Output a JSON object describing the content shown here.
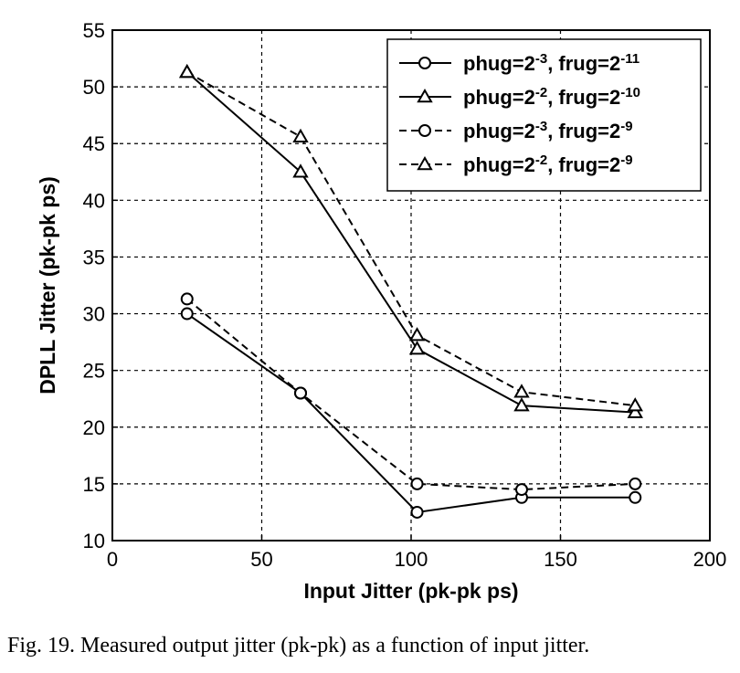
{
  "caption": "Fig. 19.   Measured output jitter (pk-pk) as a function of input jitter.",
  "chart_data": {
    "type": "line",
    "title": "",
    "xlabel": "Input Jitter (pk-pk ps)",
    "ylabel": "DPLL Jitter (pk-pk ps)",
    "xlim": [
      0,
      200
    ],
    "ylim": [
      10,
      55
    ],
    "xticks": [
      0,
      50,
      100,
      150,
      200
    ],
    "yticks": [
      10,
      15,
      20,
      25,
      30,
      35,
      40,
      45,
      50,
      55
    ],
    "grid": true,
    "grid_style": "dashed",
    "legend_position": "top-right",
    "series": [
      {
        "name_parts": [
          "phug=2",
          "-3",
          ", frug=2",
          "-11"
        ],
        "marker": "circle",
        "line": "solid",
        "x": [
          25,
          63,
          102,
          137,
          175
        ],
        "y": [
          30,
          23,
          12.5,
          13.8,
          13.8
        ]
      },
      {
        "name_parts": [
          "phug=2",
          "-2",
          ", frug=2",
          "-10"
        ],
        "marker": "triangle",
        "line": "solid",
        "x": [
          25,
          63,
          102,
          137,
          175
        ],
        "y": [
          51.3,
          42.5,
          26.9,
          21.9,
          21.3
        ]
      },
      {
        "name_parts": [
          "phug=2",
          "-3",
          ", frug=2",
          "-9"
        ],
        "marker": "circle",
        "line": "dashed",
        "x": [
          25,
          63,
          102,
          137,
          175
        ],
        "y": [
          31.3,
          23,
          15,
          14.5,
          15
        ]
      },
      {
        "name_parts": [
          "phug=2",
          "-2",
          ", frug=2",
          "-9"
        ],
        "marker": "triangle",
        "line": "dashed",
        "x": [
          25,
          63,
          102,
          137,
          175
        ],
        "y": [
          51.3,
          45.6,
          28.1,
          23.1,
          21.9
        ]
      }
    ]
  }
}
